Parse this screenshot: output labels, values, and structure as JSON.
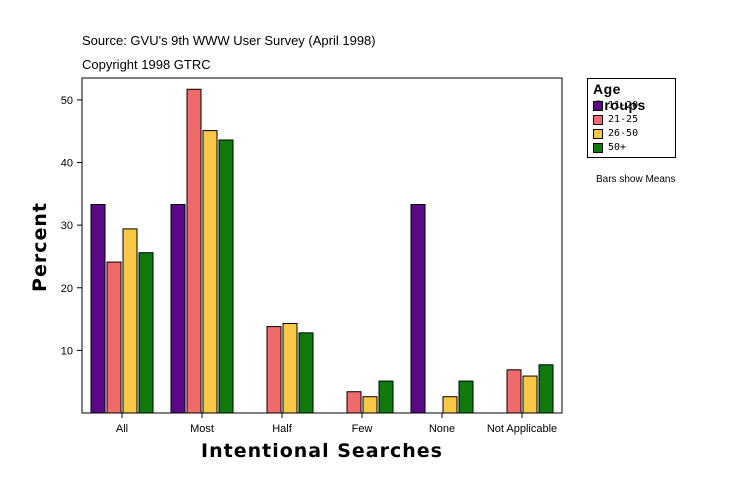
{
  "header": {
    "source": "Source: GVU's 9th WWW User Survey (April 1998)",
    "copyright": "Copyright 1998 GTRC"
  },
  "note": "Bars show Means",
  "chart_data": {
    "type": "bar",
    "xlabel": "Intentional Searches",
    "ylabel": "Percent",
    "categories": [
      "All",
      "Most",
      "Half",
      "Few",
      "None",
      "Not Applicable"
    ],
    "ylim": [
      0,
      53.5
    ],
    "yticks": [
      10,
      20,
      30,
      40,
      50
    ],
    "grid": false,
    "legend": {
      "title": "Age Groups",
      "position": "top-right"
    },
    "series": [
      {
        "name": "11-20",
        "color": "#5a0a87",
        "values": [
          33.3,
          33.3,
          0,
          0,
          33.3,
          0
        ]
      },
      {
        "name": "21-25",
        "color": "#ef6a6a",
        "values": [
          24.1,
          51.7,
          13.8,
          3.4,
          0,
          6.9
        ]
      },
      {
        "name": "26-50",
        "color": "#f8c846",
        "values": [
          29.4,
          45.1,
          14.3,
          2.6,
          2.6,
          5.9
        ]
      },
      {
        "name": "50+",
        "color": "#0f7a0f",
        "values": [
          25.6,
          43.6,
          12.8,
          5.1,
          5.1,
          7.7
        ]
      }
    ]
  }
}
